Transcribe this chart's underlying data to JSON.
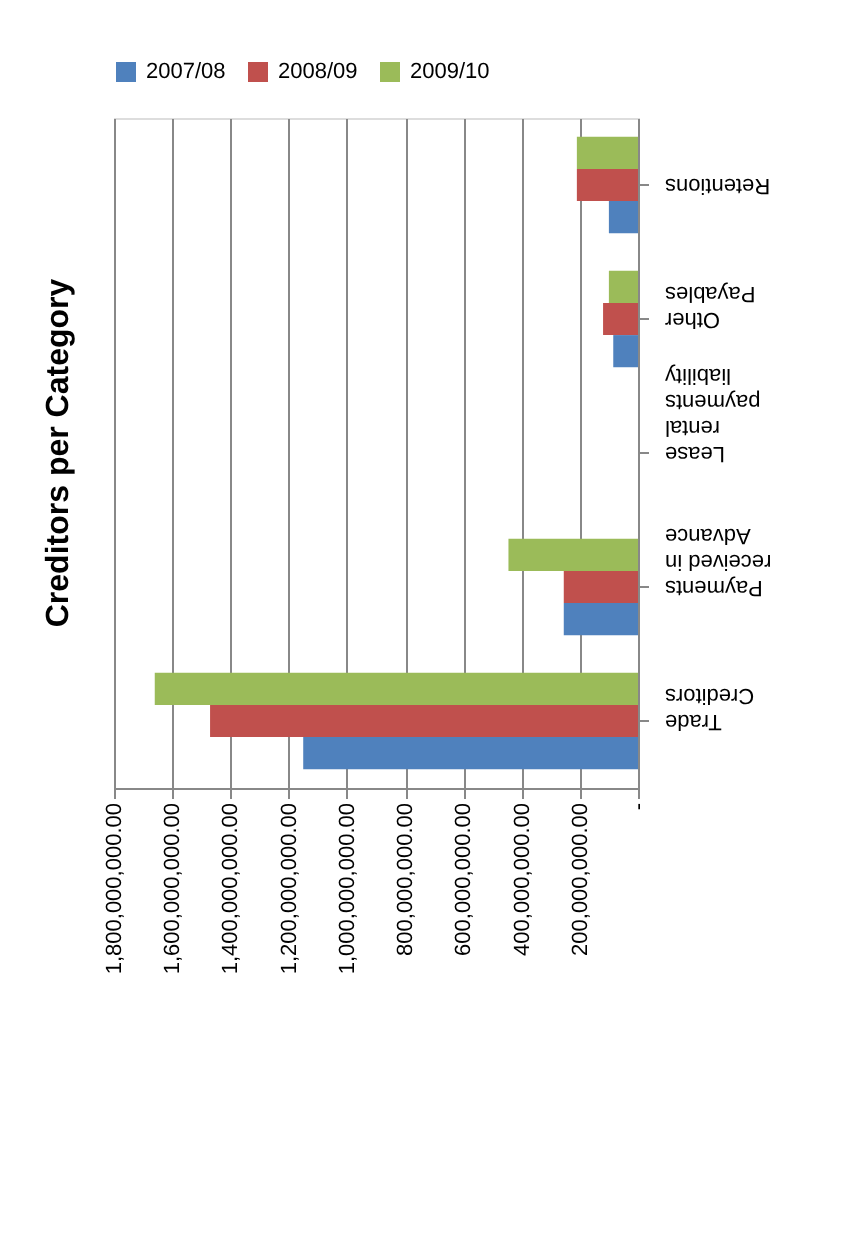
{
  "chart_data": {
    "type": "bar",
    "orientation": "horizontal",
    "title": "Creditors per Category",
    "categories": [
      "Retentions",
      "Other Payables",
      "Lease rental payments liability",
      "Payments received in Advance",
      "Trade Creditors"
    ],
    "series": [
      {
        "name": "2007/08",
        "color": "#4f81bd",
        "values": [
          100000000,
          85000000,
          null,
          255000000,
          1150000000
        ]
      },
      {
        "name": "2008/09",
        "color": "#c0504d",
        "values": [
          210000000,
          120000000,
          null,
          255000000,
          1470000000
        ]
      },
      {
        "name": "2009/10",
        "color": "#9bbb59",
        "values": [
          210000000,
          100000000,
          null,
          445000000,
          1660000000
        ]
      }
    ],
    "xlim": [
      1800000000,
      0
    ],
    "xticks": [
      {
        "value": 1800000000,
        "label": "1,800,000,000.00"
      },
      {
        "value": 1600000000,
        "label": "1,600,000,000.00"
      },
      {
        "value": 1400000000,
        "label": "1,400,000,000.00"
      },
      {
        "value": 1200000000,
        "label": "1,200,000,000.00"
      },
      {
        "value": 1000000000,
        "label": "1,000,000,000.00"
      },
      {
        "value": 800000000,
        "label": "800,000,000.00"
      },
      {
        "value": 600000000,
        "label": "600,000,000.00"
      },
      {
        "value": 400000000,
        "label": "400,000,000.00"
      },
      {
        "value": 200000000,
        "label": "200,000,000.00"
      },
      {
        "value": 0,
        "label": "-"
      }
    ],
    "grid": "x",
    "legend": "top"
  }
}
